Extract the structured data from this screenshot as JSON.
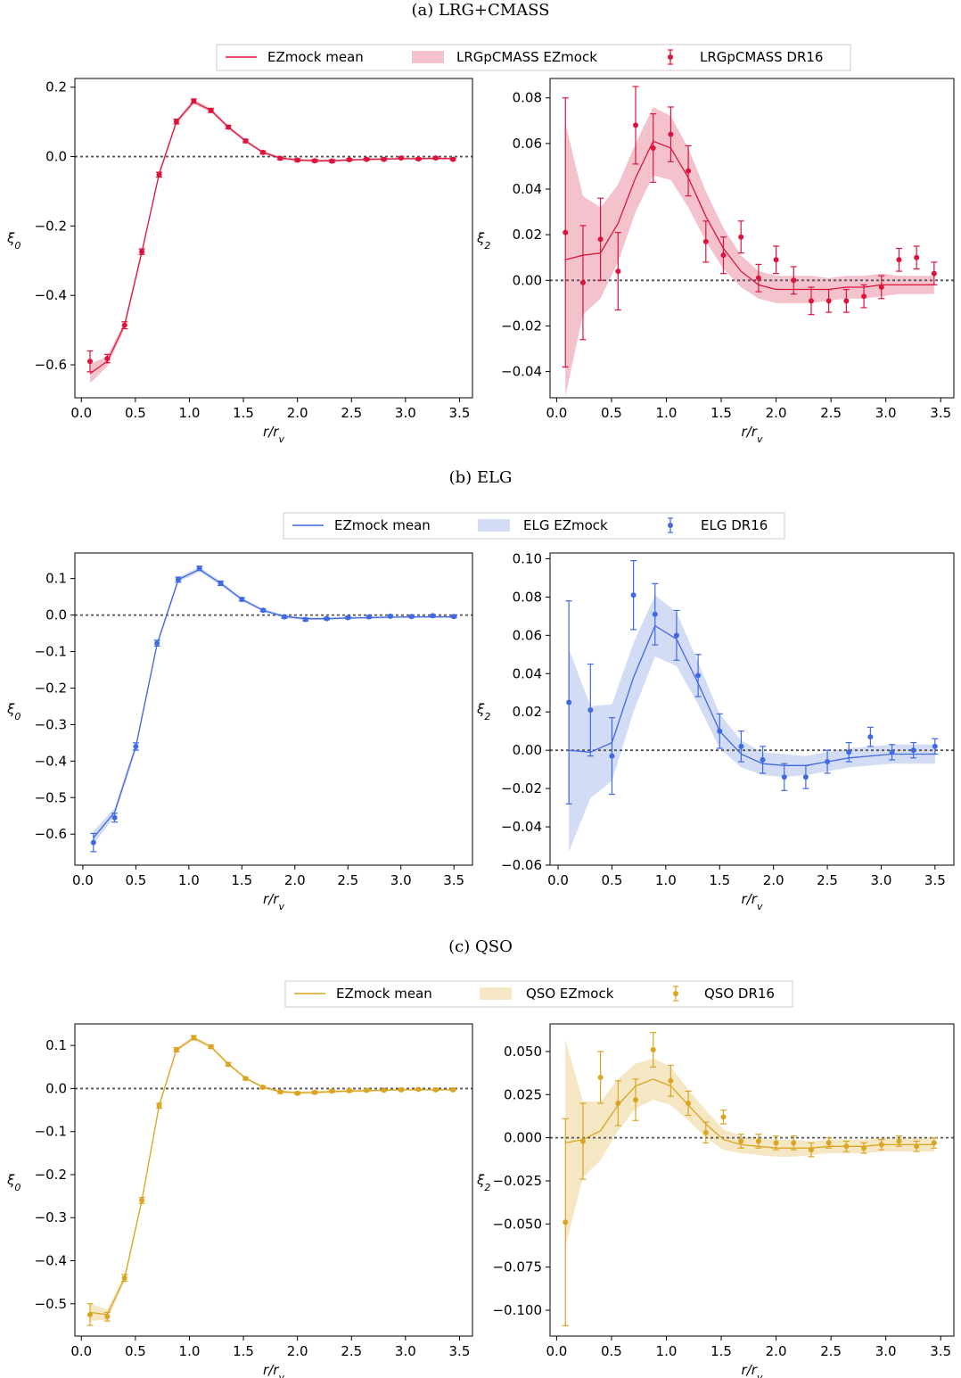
{
  "panels": [
    {
      "title": "(a) LRG+CMASS",
      "color": "#dc143c",
      "fill": "#f4c2cc",
      "legend": [
        "EZmock mean",
        "LRGpCMASS EZmock",
        "LRGpCMASS DR16"
      ]
    },
    {
      "title": "(b) ELG",
      "color": "#4169e1",
      "fill": "#d3dcf5",
      "legend": [
        "EZmock mean",
        "ELG EZmock",
        "ELG DR16"
      ]
    },
    {
      "title": "(c) QSO",
      "color": "#daa520",
      "fill": "#f5e6c4",
      "legend": [
        "EZmock mean",
        "QSO EZmock",
        "QSO DR16"
      ]
    }
  ],
  "chart_data": [
    {
      "panel": 0,
      "type": "line",
      "xlabel": "r/r_v",
      "ylabel": "ξ0",
      "xlim": [
        -0.06,
        3.62
      ],
      "ylim": [
        -0.695,
        0.225
      ],
      "xticks": [
        0.0,
        0.5,
        1.0,
        1.5,
        2.0,
        2.5,
        3.0,
        3.5
      ],
      "xtick_labels": [
        "0.0",
        "0.5",
        "1.0",
        "1.5",
        "2.0",
        "2.5",
        "3.0",
        "3.5"
      ],
      "yticks": [
        -0.6,
        -0.4,
        -0.2,
        0.0,
        0.2
      ],
      "ytick_labels": [
        "−0.6",
        "−0.4",
        "−0.2",
        "0.0",
        "0.2"
      ],
      "reference_line": 0,
      "x": [
        0.08,
        0.24,
        0.4,
        0.56,
        0.72,
        0.88,
        1.04,
        1.2,
        1.36,
        1.52,
        1.68,
        1.84,
        2.0,
        2.16,
        2.32,
        2.48,
        2.64,
        2.8,
        2.96,
        3.12,
        3.28,
        3.44
      ],
      "mean": [
        -0.625,
        -0.59,
        -0.485,
        -0.275,
        -0.05,
        0.1,
        0.158,
        0.133,
        0.085,
        0.045,
        0.012,
        -0.004,
        -0.01,
        -0.012,
        -0.012,
        -0.01,
        -0.008,
        -0.007,
        -0.006,
        -0.006,
        -0.005,
        -0.006
      ],
      "band": [
        0.028,
        0.014,
        0.01,
        0.008,
        0.007,
        0.007,
        0.007,
        0.006,
        0.005,
        0.005,
        0.004,
        0.004,
        0.004,
        0.004,
        0.004,
        0.003,
        0.003,
        0.003,
        0.003,
        0.003,
        0.003,
        0.003
      ],
      "obs": [
        -0.59,
        -0.582,
        -0.486,
        -0.274,
        -0.052,
        0.101,
        0.16,
        0.133,
        0.085,
        0.045,
        0.012,
        -0.005,
        -0.01,
        -0.012,
        -0.013,
        -0.009,
        -0.008,
        -0.008,
        -0.004,
        -0.007,
        -0.004,
        -0.008
      ],
      "err": [
        0.03,
        0.012,
        0.01,
        0.008,
        0.007,
        0.007,
        0.006,
        0.006,
        0.005,
        0.005,
        0.004,
        0.004,
        0.004,
        0.004,
        0.004,
        0.003,
        0.003,
        0.003,
        0.003,
        0.003,
        0.003,
        0.003
      ]
    },
    {
      "panel": 0,
      "type": "line",
      "xlabel": "r/r_v",
      "ylabel": "ξ2",
      "xlim": [
        -0.06,
        3.62
      ],
      "ylim": [
        -0.0515,
        0.0885
      ],
      "xticks": [
        0.0,
        0.5,
        1.0,
        1.5,
        2.0,
        2.5,
        3.0,
        3.5
      ],
      "xtick_labels": [
        "0.0",
        "0.5",
        "1.0",
        "1.5",
        "2.0",
        "2.5",
        "3.0",
        "3.5"
      ],
      "yticks": [
        -0.04,
        -0.02,
        0.0,
        0.02,
        0.04,
        0.06,
        0.08
      ],
      "ytick_labels": [
        "−0.04",
        "−0.02",
        "0.00",
        "0.02",
        "0.04",
        "0.06",
        "0.08"
      ],
      "reference_line": 0,
      "x": [
        0.08,
        0.24,
        0.4,
        0.56,
        0.72,
        0.88,
        1.04,
        1.2,
        1.36,
        1.52,
        1.68,
        1.84,
        2.0,
        2.16,
        2.32,
        2.48,
        2.64,
        2.8,
        2.96,
        3.12,
        3.28,
        3.44
      ],
      "mean": [
        0.009,
        0.011,
        0.012,
        0.025,
        0.045,
        0.061,
        0.058,
        0.045,
        0.028,
        0.014,
        0.004,
        -0.002,
        -0.004,
        -0.004,
        -0.004,
        -0.004,
        -0.003,
        -0.003,
        -0.002,
        -0.002,
        -0.002,
        -0.002
      ],
      "band": [
        0.06,
        0.026,
        0.02,
        0.017,
        0.015,
        0.015,
        0.014,
        0.013,
        0.011,
        0.009,
        0.007,
        0.006,
        0.006,
        0.006,
        0.006,
        0.005,
        0.005,
        0.005,
        0.005,
        0.004,
        0.004,
        0.004
      ],
      "obs": [
        0.021,
        -0.001,
        0.018,
        0.004,
        0.068,
        0.058,
        0.064,
        0.048,
        0.017,
        0.011,
        0.019,
        0.001,
        0.009,
        0.0,
        -0.009,
        -0.009,
        -0.009,
        -0.007,
        -0.003,
        0.009,
        0.01,
        0.003
      ],
      "err": [
        0.059,
        0.025,
        0.018,
        0.017,
        0.017,
        0.015,
        0.012,
        0.011,
        0.009,
        0.008,
        0.007,
        0.006,
        0.006,
        0.006,
        0.006,
        0.005,
        0.005,
        0.005,
        0.005,
        0.005,
        0.005,
        0.005
      ]
    },
    {
      "panel": 1,
      "type": "line",
      "xlabel": "r/r_v",
      "ylabel": "ξ0",
      "xlim": [
        -0.075,
        3.675
      ],
      "ylim": [
        -0.685,
        0.17
      ],
      "xticks": [
        0.0,
        0.5,
        1.0,
        1.5,
        2.0,
        2.5,
        3.0,
        3.5
      ],
      "xtick_labels": [
        "0.0",
        "0.5",
        "1.0",
        "1.5",
        "2.0",
        "2.5",
        "3.0",
        "3.5"
      ],
      "yticks": [
        -0.6,
        -0.5,
        -0.4,
        -0.3,
        -0.2,
        -0.1,
        0.0,
        0.1
      ],
      "ytick_labels": [
        "−0.6",
        "−0.5",
        "−0.4",
        "−0.3",
        "−0.2",
        "−0.1",
        "0.0",
        "0.1"
      ],
      "reference_line": 0,
      "x": [
        0.1,
        0.3,
        0.5,
        0.7,
        0.9,
        1.1,
        1.3,
        1.5,
        1.7,
        1.9,
        2.1,
        2.3,
        2.5,
        2.7,
        2.9,
        3.1,
        3.3,
        3.5
      ],
      "mean": [
        -0.61,
        -0.54,
        -0.36,
        -0.08,
        0.097,
        0.125,
        0.087,
        0.043,
        0.013,
        -0.004,
        -0.01,
        -0.01,
        -0.008,
        -0.007,
        -0.006,
        -0.005,
        -0.005,
        -0.005
      ],
      "band": [
        0.018,
        0.012,
        0.01,
        0.008,
        0.007,
        0.007,
        0.006,
        0.005,
        0.004,
        0.004,
        0.004,
        0.003,
        0.003,
        0.003,
        0.003,
        0.003,
        0.003,
        0.003
      ],
      "obs": [
        -0.623,
        -0.555,
        -0.36,
        -0.077,
        0.097,
        0.128,
        0.087,
        0.043,
        0.013,
        -0.005,
        -0.012,
        -0.01,
        -0.007,
        -0.005,
        -0.003,
        -0.004,
        -0.002,
        -0.004
      ],
      "err": [
        0.025,
        0.012,
        0.01,
        0.008,
        0.007,
        0.006,
        0.006,
        0.005,
        0.004,
        0.004,
        0.004,
        0.003,
        0.003,
        0.003,
        0.003,
        0.003,
        0.003,
        0.003
      ]
    },
    {
      "panel": 1,
      "type": "line",
      "xlabel": "r/r_v",
      "ylabel": "ξ2",
      "xlim": [
        -0.075,
        3.675
      ],
      "ylim": [
        -0.06,
        0.103
      ],
      "xticks": [
        0.0,
        0.5,
        1.0,
        1.5,
        2.0,
        2.5,
        3.0,
        3.5
      ],
      "xtick_labels": [
        "0.0",
        "0.5",
        "1.0",
        "1.5",
        "2.0",
        "2.5",
        "3.0",
        "3.5"
      ],
      "yticks": [
        -0.06,
        -0.04,
        -0.02,
        0.0,
        0.02,
        0.04,
        0.06,
        0.08,
        0.1
      ],
      "ytick_labels": [
        "−0.06",
        "−0.04",
        "−0.02",
        "0.00",
        "0.02",
        "0.04",
        "0.06",
        "0.08",
        "0.10"
      ],
      "reference_line": 0,
      "x": [
        0.1,
        0.3,
        0.5,
        0.7,
        0.9,
        1.1,
        1.3,
        1.5,
        1.7,
        1.9,
        2.1,
        2.3,
        2.5,
        2.7,
        2.9,
        3.1,
        3.3,
        3.5
      ],
      "mean": [
        0.0,
        -0.001,
        0.004,
        0.038,
        0.065,
        0.058,
        0.035,
        0.01,
        -0.002,
        -0.007,
        -0.008,
        -0.008,
        -0.006,
        -0.004,
        -0.003,
        -0.002,
        -0.002,
        -0.002
      ],
      "band": [
        0.053,
        0.024,
        0.02,
        0.018,
        0.016,
        0.014,
        0.011,
        0.009,
        0.007,
        0.006,
        0.006,
        0.005,
        0.005,
        0.005,
        0.005,
        0.005,
        0.005,
        0.005
      ],
      "obs": [
        0.025,
        0.021,
        -0.003,
        0.081,
        0.071,
        0.06,
        0.039,
        0.01,
        0.002,
        -0.005,
        -0.014,
        -0.014,
        -0.006,
        -0.001,
        0.007,
        -0.001,
        0.0,
        0.002
      ],
      "err": [
        0.053,
        0.024,
        0.02,
        0.018,
        0.016,
        0.013,
        0.011,
        0.009,
        0.008,
        0.007,
        0.007,
        0.006,
        0.006,
        0.005,
        0.005,
        0.004,
        0.004,
        0.004
      ]
    },
    {
      "panel": 2,
      "type": "line",
      "xlabel": "r/r_v",
      "ylabel": "ξ0",
      "xlim": [
        -0.06,
        3.62
      ],
      "ylim": [
        -0.575,
        0.15
      ],
      "xticks": [
        0.0,
        0.5,
        1.0,
        1.5,
        2.0,
        2.5,
        3.0,
        3.5
      ],
      "xtick_labels": [
        "0.0",
        "0.5",
        "1.0",
        "1.5",
        "2.0",
        "2.5",
        "3.0",
        "3.5"
      ],
      "yticks": [
        -0.5,
        -0.4,
        -0.3,
        -0.2,
        -0.1,
        0.0,
        0.1
      ],
      "ytick_labels": [
        "−0.5",
        "−0.4",
        "−0.3",
        "−0.2",
        "−0.1",
        "0.0",
        "0.1"
      ],
      "reference_line": 0,
      "x": [
        0.08,
        0.24,
        0.4,
        0.56,
        0.72,
        0.88,
        1.04,
        1.2,
        1.36,
        1.52,
        1.68,
        1.84,
        2.0,
        2.16,
        2.32,
        2.48,
        2.64,
        2.8,
        2.96,
        3.12,
        3.28,
        3.44
      ],
      "mean": [
        -0.52,
        -0.525,
        -0.44,
        -0.26,
        -0.04,
        0.09,
        0.117,
        0.097,
        0.057,
        0.024,
        0.003,
        -0.007,
        -0.01,
        -0.009,
        -0.007,
        -0.006,
        -0.005,
        -0.004,
        -0.003,
        -0.003,
        -0.003,
        -0.003
      ],
      "band": [
        0.02,
        0.012,
        0.008,
        0.007,
        0.006,
        0.005,
        0.005,
        0.004,
        0.004,
        0.003,
        0.003,
        0.003,
        0.003,
        0.003,
        0.003,
        0.003,
        0.003,
        0.002,
        0.002,
        0.002,
        0.002,
        0.002
      ],
      "obs": [
        -0.525,
        -0.53,
        -0.44,
        -0.26,
        -0.04,
        0.09,
        0.118,
        0.097,
        0.056,
        0.023,
        0.003,
        -0.008,
        -0.011,
        -0.009,
        -0.006,
        -0.005,
        -0.004,
        -0.004,
        -0.003,
        -0.002,
        -0.003,
        -0.003
      ],
      "err": [
        0.025,
        0.01,
        0.008,
        0.007,
        0.006,
        0.005,
        0.005,
        0.004,
        0.004,
        0.003,
        0.003,
        0.003,
        0.003,
        0.003,
        0.003,
        0.003,
        0.003,
        0.002,
        0.002,
        0.002,
        0.002,
        0.002
      ]
    },
    {
      "panel": 2,
      "type": "line",
      "xlabel": "r/r_v",
      "ylabel": "ξ2",
      "xlim": [
        -0.06,
        3.62
      ],
      "ylim": [
        -0.115,
        0.066
      ],
      "xticks": [
        0.0,
        0.5,
        1.0,
        1.5,
        2.0,
        2.5,
        3.0,
        3.5
      ],
      "xtick_labels": [
        "0.0",
        "0.5",
        "1.0",
        "1.5",
        "2.0",
        "2.5",
        "3.0",
        "3.5"
      ],
      "yticks": [
        -0.1,
        -0.075,
        -0.05,
        -0.025,
        0.0,
        0.025,
        0.05
      ],
      "ytick_labels": [
        "−0.100",
        "−0.075",
        "−0.050",
        "−0.025",
        "0.000",
        "0.025",
        "0.050"
      ],
      "reference_line": 0,
      "x": [
        0.08,
        0.24,
        0.4,
        0.56,
        0.72,
        0.88,
        1.04,
        1.2,
        1.36,
        1.52,
        1.68,
        1.84,
        2.0,
        2.16,
        2.32,
        2.48,
        2.64,
        2.8,
        2.96,
        3.12,
        3.28,
        3.44
      ],
      "mean": [
        -0.003,
        -0.001,
        0.004,
        0.019,
        0.03,
        0.034,
        0.03,
        0.019,
        0.008,
        -0.001,
        -0.004,
        -0.005,
        -0.006,
        -0.006,
        -0.006,
        -0.005,
        -0.005,
        -0.005,
        -0.004,
        -0.004,
        -0.004,
        -0.004
      ],
      "band": [
        0.06,
        0.022,
        0.017,
        0.015,
        0.013,
        0.012,
        0.011,
        0.009,
        0.008,
        0.006,
        0.005,
        0.005,
        0.005,
        0.005,
        0.004,
        0.004,
        0.004,
        0.004,
        0.004,
        0.004,
        0.004,
        0.004
      ],
      "obs": [
        -0.049,
        -0.002,
        0.035,
        0.02,
        0.022,
        0.051,
        0.033,
        0.02,
        0.003,
        0.012,
        -0.002,
        -0.002,
        -0.003,
        -0.003,
        -0.007,
        -0.003,
        -0.005,
        -0.006,
        -0.004,
        -0.002,
        -0.005,
        -0.003
      ],
      "err": [
        0.06,
        0.022,
        0.015,
        0.013,
        0.012,
        0.01,
        0.009,
        0.007,
        0.006,
        0.004,
        0.004,
        0.004,
        0.004,
        0.004,
        0.004,
        0.003,
        0.003,
        0.003,
        0.003,
        0.003,
        0.003,
        0.003
      ]
    }
  ]
}
